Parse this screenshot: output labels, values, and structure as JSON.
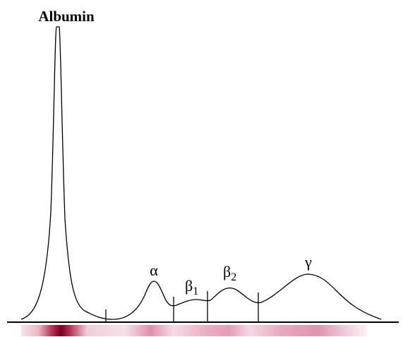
{
  "title": "Albumin",
  "fractions": [
    {
      "symbol": "α"
    },
    {
      "symbol": "β",
      "subscript": "1"
    },
    {
      "symbol": "β",
      "subscript": "2"
    },
    {
      "symbol": "γ"
    }
  ]
}
